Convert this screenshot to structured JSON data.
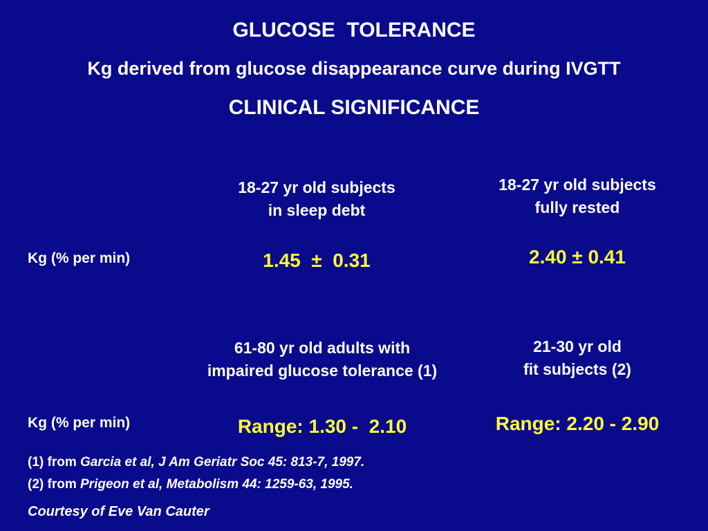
{
  "slide": {
    "title": "GLUCOSE  TOLERANCE",
    "subtitle": "Kg derived from glucose disappearance curve during IVGTT",
    "heading": "CLINICAL SIGNIFICANCE",
    "top_row": {
      "label": "Kg (% per min)",
      "left_header": [
        "18-27 yr old subjects",
        "in sleep debt"
      ],
      "right_header": [
        "18-27 yr old subjects",
        "fully rested"
      ],
      "left_value": "1.45  ±  0.31",
      "right_value": "2.40 ± 0.41"
    },
    "bottom_row": {
      "label": "Kg (% per min)",
      "left_header": [
        "61-80 yr old adults with",
        "impaired glucose tolerance (1)"
      ],
      "right_header": [
        "21-30 yr old",
        "fit subjects (2)"
      ],
      "left_value": "Range: 1.30 -  2.10",
      "right_value": "Range: 2.20 - 2.90"
    },
    "references": [
      {
        "prefix": "(1) from ",
        "citation": "Garcia et al, J Am Geriatr Soc 45: 813-7, 1997."
      },
      {
        "prefix": "(2) from ",
        "citation": "Prigeon et al, Metabolism 44: 1259-63, 1995."
      }
    ],
    "courtesy": "Courtesy of Eve Van Cauter"
  },
  "colors": {
    "background": "#0a0a8c",
    "text": "#ffffff",
    "highlight": "#ffff33"
  }
}
